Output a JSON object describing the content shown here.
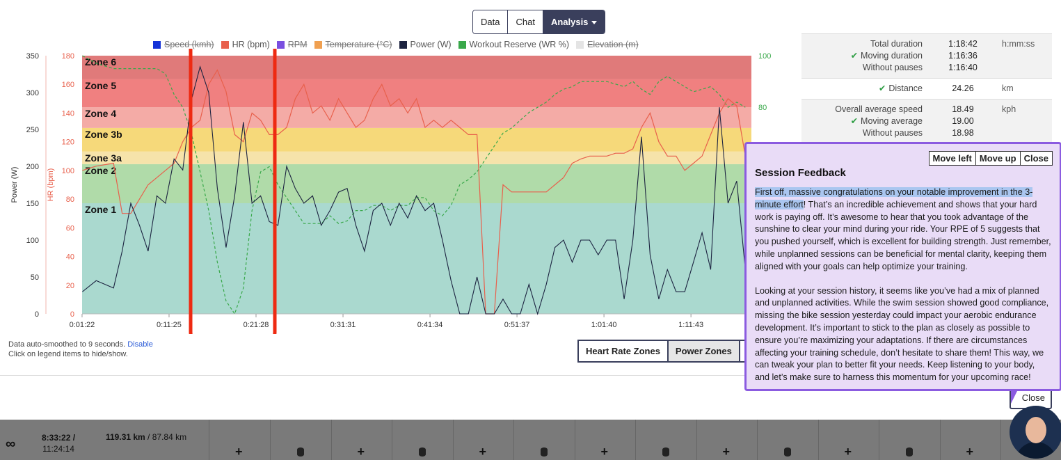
{
  "tabs": [
    {
      "label": "Data"
    },
    {
      "label": "Chat"
    },
    {
      "label": "Analysis"
    }
  ],
  "legend": [
    {
      "label": "Speed (kmh)",
      "color": "#1432d8",
      "hidden": true
    },
    {
      "label": "HR (bpm)",
      "color": "#e8604c",
      "hidden": false
    },
    {
      "label": "RPM",
      "color": "#7a4fe0",
      "hidden": true
    },
    {
      "label": "Temperature (°C)",
      "color": "#f0a050",
      "hidden": true
    },
    {
      "label": "Power (W)",
      "color": "#1c2340",
      "hidden": false
    },
    {
      "label": "Workout Reserve (WR %)",
      "color": "#39a84a",
      "hidden": false
    },
    {
      "label": "Elevation (m)",
      "color": "#e4e4e4",
      "hidden": true
    }
  ],
  "chart_data": {
    "type": "line",
    "ylabel_left": "Power (W)",
    "ylabel_hr": "HR (bpm)",
    "power_ticks": [
      0,
      50,
      100,
      150,
      200,
      250,
      300,
      350
    ],
    "hr_ticks": [
      0,
      20,
      40,
      60,
      80,
      100,
      120,
      140,
      160,
      180
    ],
    "wr_ticks": [
      60,
      80,
      100
    ],
    "x_ticks": [
      "0:01:22",
      "0:11:25",
      "0:21:28",
      "0:31:31",
      "0:41:34",
      "0:51:37",
      "1:01:40",
      "1:11:43"
    ],
    "x_minutes_range": [
      1.37,
      78.7
    ],
    "power_range": [
      0,
      350
    ],
    "hr_range": [
      0,
      180
    ],
    "wr_range": [
      0,
      100
    ],
    "zones": [
      {
        "name": "Zone 1",
        "from": 0,
        "to": 150,
        "color": "#aad9cf"
      },
      {
        "name": "Zone 2",
        "from": 150,
        "to": 203,
        "color": "#b0dba9"
      },
      {
        "name": "Zone 3a",
        "from": 203,
        "to": 220,
        "color": "#f6e3aa"
      },
      {
        "name": "Zone 3b",
        "from": 220,
        "to": 252,
        "color": "#f6d97a"
      },
      {
        "name": "Zone 4",
        "from": 252,
        "to": 280,
        "color": "#f4aba6"
      },
      {
        "name": "Zone 5",
        "from": 280,
        "to": 318,
        "color": "#f08080"
      },
      {
        "name": "Zone 6",
        "from": 318,
        "to": 350,
        "color": "#e07a7a"
      }
    ],
    "series": [
      {
        "name": "Power (W)",
        "color": "#1c2340",
        "x": [
          1.4,
          3,
          5,
          6,
          7,
          8,
          9,
          10,
          11,
          12,
          13,
          14,
          15,
          16,
          17,
          18,
          19,
          20,
          21,
          22,
          23,
          24,
          25,
          26,
          27,
          28,
          29,
          30,
          31,
          32,
          33,
          34,
          35,
          36,
          37,
          38,
          39,
          40,
          41,
          42,
          43,
          44,
          45,
          46,
          47,
          48,
          49,
          50,
          51,
          52,
          53,
          54,
          55,
          56,
          57,
          58,
          59,
          60,
          61,
          62,
          63,
          64,
          65,
          66,
          67,
          68,
          69,
          70,
          71,
          72,
          73,
          74,
          75,
          76,
          77,
          78
        ],
        "y": [
          30,
          45,
          35,
          85,
          150,
          120,
          85,
          160,
          150,
          210,
          195,
          290,
          335,
          300,
          170,
          90,
          160,
          260,
          150,
          160,
          125,
          120,
          200,
          170,
          150,
          160,
          120,
          140,
          165,
          170,
          120,
          85,
          140,
          150,
          120,
          150,
          130,
          160,
          140,
          150,
          100,
          45,
          0,
          0,
          50,
          0,
          0,
          20,
          0,
          0,
          40,
          0,
          40,
          90,
          100,
          70,
          100,
          100,
          80,
          100,
          100,
          20,
          100,
          240,
          80,
          20,
          60,
          30,
          30,
          70,
          110,
          60,
          280,
          150,
          180,
          60
        ]
      },
      {
        "name": "HR (bpm)",
        "color": "#e8604c",
        "x": [
          1.4,
          3,
          5,
          6,
          7,
          8,
          9,
          10,
          11,
          12,
          13,
          14,
          15,
          16,
          17,
          18,
          19,
          20,
          21,
          22,
          23,
          24,
          25,
          26,
          27,
          28,
          29,
          30,
          31,
          32,
          33,
          34,
          35,
          36,
          37,
          38,
          39,
          40,
          41,
          42,
          43,
          44,
          45,
          46,
          47,
          48,
          49,
          50,
          51,
          52,
          53,
          54,
          55,
          56,
          57,
          58,
          59,
          60,
          61,
          62,
          63,
          64,
          65,
          66,
          67,
          68,
          69,
          70,
          71,
          72,
          73,
          74,
          75,
          76,
          77,
          78
        ],
        "y": [
          100,
          103,
          105,
          70,
          70,
          80,
          90,
          95,
          100,
          105,
          120,
          130,
          135,
          160,
          170,
          155,
          125,
          120,
          140,
          135,
          125,
          125,
          130,
          150,
          160,
          140,
          145,
          135,
          150,
          140,
          130,
          135,
          150,
          160,
          145,
          150,
          140,
          150,
          130,
          135,
          130,
          135,
          130,
          125,
          125,
          0,
          0,
          90,
          85,
          85,
          85,
          85,
          85,
          90,
          95,
          105,
          108,
          110,
          110,
          110,
          112,
          112,
          115,
          130,
          140,
          120,
          110,
          110,
          100,
          105,
          110,
          125,
          140,
          150,
          145,
          110
        ]
      },
      {
        "name": "Workout Reserve (WR %)",
        "color": "#39a84a",
        "x": [
          1.4,
          3,
          5,
          6,
          7,
          8,
          9,
          10,
          11,
          12,
          13,
          14,
          15,
          16,
          17,
          18,
          19,
          20,
          21,
          22,
          23,
          24,
          25,
          26,
          27,
          28,
          29,
          30,
          31,
          32,
          33,
          34,
          35,
          36,
          37,
          38,
          39,
          40,
          41,
          42,
          43,
          44,
          45,
          46,
          47,
          48,
          49,
          50,
          51,
          52,
          53,
          54,
          55,
          56,
          57,
          58,
          59,
          60,
          61,
          62,
          63,
          64,
          65,
          66,
          67,
          68,
          69,
          70,
          71,
          72,
          73,
          74,
          75,
          76,
          77,
          78
        ],
        "y": [
          100,
          97,
          95,
          95,
          95,
          95,
          95,
          95,
          93,
          85,
          80,
          70,
          55,
          40,
          20,
          5,
          0,
          10,
          40,
          55,
          57,
          50,
          45,
          40,
          35,
          35,
          35,
          38,
          35,
          36,
          40,
          40,
          42,
          42,
          40,
          42,
          42,
          45,
          45,
          40,
          38,
          42,
          50,
          52,
          55,
          60,
          65,
          70,
          72,
          75,
          78,
          80,
          82,
          85,
          87,
          88,
          90,
          90,
          90,
          90,
          89,
          88,
          90,
          87,
          85,
          90,
          92,
          90,
          88,
          86,
          87,
          88,
          85,
          80,
          82,
          80
        ]
      }
    ]
  },
  "note": {
    "line1": "Data auto-smoothed to 9 seconds.",
    "disable": "Disable",
    "line2": "Click on legend items to hide/show."
  },
  "zone_buttons": [
    {
      "label": "Heart Rate Zones"
    },
    {
      "label": "Power Zones"
    },
    {
      "label": "S"
    }
  ],
  "stats": {
    "total_duration": {
      "label": "Total duration",
      "value": "1:18:42",
      "unit": "h:mm:ss"
    },
    "moving_duration": {
      "label": "Moving duration",
      "value": "1:16:36"
    },
    "without_pauses_dur": {
      "label": "Without pauses",
      "value": "1:16:40"
    },
    "distance": {
      "label": "Distance",
      "value": "24.26",
      "unit": "km"
    },
    "avg_speed": {
      "label": "Overall average speed",
      "value": "18.49",
      "unit": "kph"
    },
    "moving_avg": {
      "label": "Moving average",
      "value": "19.00"
    },
    "without_pauses_speed": {
      "label": "Without pauses",
      "value": "18.98"
    }
  },
  "popup": {
    "move_left": "Move left",
    "move_up": "Move up",
    "close": "Close",
    "title": "Session Feedback",
    "p1_highlight": "First off, massive congratulations on your notable improvement in the 3-minute effort",
    "p1_rest": "! That’s an incredible achievement and shows that your hard work is paying off. It’s awesome to hear that you took advantage of the sunshine to clear your mind during your ride. Your RPE of 5 suggests that you pushed yourself, which is excellent for building strength. Just remember, while unplanned sessions can be beneficial for mental clarity, keeping them aligned with your goals can help optimize your training.",
    "p2": "Looking at your session history, it seems like you’ve had a mix of planned and unplanned activities. While the swim session showed good compliance, missing the bike session yesterday could impact your aerobic endurance development. It’s important to stick to the plan as closely as possible to ensure you’re maximizing your adaptations. If there are circumstances affecting your training schedule, don’t hesitate to share them! This way, we can tweak your plan to better fit your needs. Keep listening to your body, and let’s make sure to harness this momentum for your upcoming race!"
  },
  "under_close": "Close",
  "bottom": {
    "infinity": "∞",
    "time_line1": "8:33:22 /",
    "time_line2": "11:24:14",
    "dist_bold": "119.31 km",
    "dist_rest": " / 87.84 km"
  },
  "annotation_color": "#ee2a12"
}
